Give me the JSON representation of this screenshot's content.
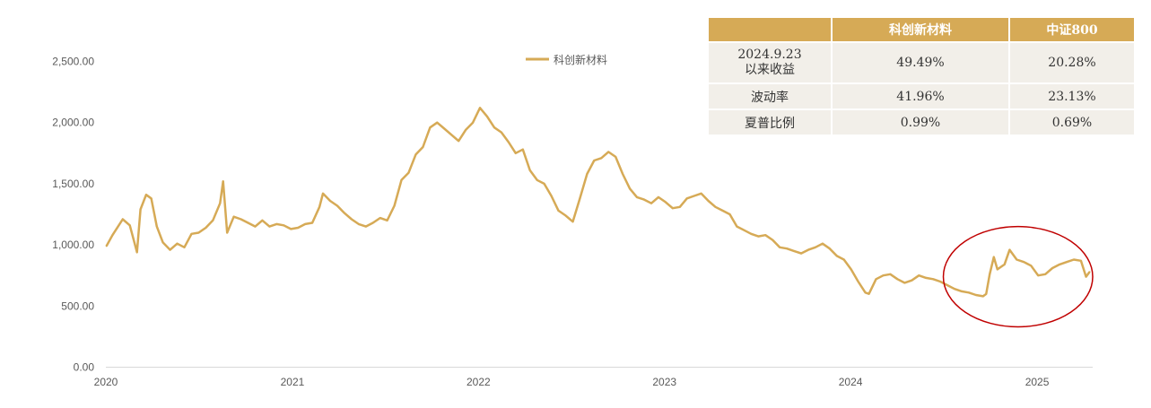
{
  "colors": {
    "line": "#d6aa56",
    "header_bg": "#d6aa56",
    "cell_bg": "#f2efe9",
    "highlight_circle": "#c00000",
    "axis": "#d9d9d9"
  },
  "chart_data": {
    "type": "line",
    "series": [
      {
        "name": "科创新材料",
        "points": [
          [
            "2020-01-02",
            990
          ],
          [
            "2020-01-14",
            1080
          ],
          [
            "2020-02-03",
            1210
          ],
          [
            "2020-02-17",
            1160
          ],
          [
            "2020-03-02",
            940
          ],
          [
            "2020-03-09",
            1290
          ],
          [
            "2020-03-20",
            1410
          ],
          [
            "2020-03-30",
            1380
          ],
          [
            "2020-04-10",
            1150
          ],
          [
            "2020-04-22",
            1020
          ],
          [
            "2020-05-06",
            960
          ],
          [
            "2020-05-20",
            1010
          ],
          [
            "2020-06-03",
            980
          ],
          [
            "2020-06-17",
            1090
          ],
          [
            "2020-07-01",
            1100
          ],
          [
            "2020-07-15",
            1140
          ],
          [
            "2020-07-29",
            1200
          ],
          [
            "2020-08-12",
            1340
          ],
          [
            "2020-08-18",
            1520
          ],
          [
            "2020-08-26",
            1100
          ],
          [
            "2020-09-08",
            1230
          ],
          [
            "2020-09-22",
            1210
          ],
          [
            "2020-10-06",
            1180
          ],
          [
            "2020-10-20",
            1150
          ],
          [
            "2020-11-03",
            1200
          ],
          [
            "2020-11-17",
            1150
          ],
          [
            "2020-12-01",
            1170
          ],
          [
            "2020-12-15",
            1160
          ],
          [
            "2020-12-29",
            1130
          ],
          [
            "2021-01-12",
            1140
          ],
          [
            "2021-01-26",
            1170
          ],
          [
            "2021-02-09",
            1180
          ],
          [
            "2021-02-23",
            1310
          ],
          [
            "2021-03-02",
            1420
          ],
          [
            "2021-03-16",
            1360
          ],
          [
            "2021-03-30",
            1320
          ],
          [
            "2021-04-13",
            1260
          ],
          [
            "2021-04-27",
            1210
          ],
          [
            "2021-05-11",
            1170
          ],
          [
            "2021-05-25",
            1150
          ],
          [
            "2021-06-08",
            1180
          ],
          [
            "2021-06-22",
            1220
          ],
          [
            "2021-07-06",
            1200
          ],
          [
            "2021-07-20",
            1320
          ],
          [
            "2021-08-03",
            1530
          ],
          [
            "2021-08-17",
            1590
          ],
          [
            "2021-08-31",
            1740
          ],
          [
            "2021-09-14",
            1800
          ],
          [
            "2021-09-28",
            1960
          ],
          [
            "2021-10-12",
            2000
          ],
          [
            "2021-10-26",
            1950
          ],
          [
            "2021-11-09",
            1900
          ],
          [
            "2021-11-23",
            1850
          ],
          [
            "2021-12-07",
            1940
          ],
          [
            "2021-12-21",
            2000
          ],
          [
            "2022-01-04",
            2120
          ],
          [
            "2022-01-18",
            2050
          ],
          [
            "2022-02-01",
            1960
          ],
          [
            "2022-02-15",
            1920
          ],
          [
            "2022-03-01",
            1840
          ],
          [
            "2022-03-15",
            1750
          ],
          [
            "2022-03-29",
            1780
          ],
          [
            "2022-04-12",
            1610
          ],
          [
            "2022-04-26",
            1530
          ],
          [
            "2022-05-10",
            1500
          ],
          [
            "2022-05-24",
            1400
          ],
          [
            "2022-06-07",
            1280
          ],
          [
            "2022-06-21",
            1240
          ],
          [
            "2022-07-05",
            1190
          ],
          [
            "2022-07-19",
            1380
          ],
          [
            "2022-08-02",
            1580
          ],
          [
            "2022-08-16",
            1690
          ],
          [
            "2022-08-30",
            1710
          ],
          [
            "2022-09-13",
            1760
          ],
          [
            "2022-09-27",
            1720
          ],
          [
            "2022-10-11",
            1580
          ],
          [
            "2022-10-25",
            1460
          ],
          [
            "2022-11-08",
            1390
          ],
          [
            "2022-11-22",
            1370
          ],
          [
            "2022-12-06",
            1340
          ],
          [
            "2022-12-20",
            1390
          ],
          [
            "2023-01-03",
            1350
          ],
          [
            "2023-01-17",
            1300
          ],
          [
            "2023-01-31",
            1310
          ],
          [
            "2023-02-14",
            1380
          ],
          [
            "2023-02-28",
            1400
          ],
          [
            "2023-03-14",
            1420
          ],
          [
            "2023-03-28",
            1360
          ],
          [
            "2023-04-11",
            1310
          ],
          [
            "2023-04-25",
            1280
          ],
          [
            "2023-05-09",
            1250
          ],
          [
            "2023-05-23",
            1150
          ],
          [
            "2023-06-06",
            1120
          ],
          [
            "2023-06-20",
            1090
          ],
          [
            "2023-07-04",
            1070
          ],
          [
            "2023-07-18",
            1080
          ],
          [
            "2023-08-01",
            1040
          ],
          [
            "2023-08-15",
            980
          ],
          [
            "2023-08-29",
            970
          ],
          [
            "2023-09-12",
            950
          ],
          [
            "2023-09-26",
            930
          ],
          [
            "2023-10-10",
            960
          ],
          [
            "2023-10-24",
            980
          ],
          [
            "2023-11-07",
            1010
          ],
          [
            "2023-11-21",
            970
          ],
          [
            "2023-12-05",
            910
          ],
          [
            "2023-12-19",
            880
          ],
          [
            "2024-01-02",
            800
          ],
          [
            "2024-01-16",
            700
          ],
          [
            "2024-01-30",
            610
          ],
          [
            "2024-02-06",
            600
          ],
          [
            "2024-02-20",
            720
          ],
          [
            "2024-03-05",
            750
          ],
          [
            "2024-03-19",
            760
          ],
          [
            "2024-04-02",
            720
          ],
          [
            "2024-04-16",
            690
          ],
          [
            "2024-04-30",
            710
          ],
          [
            "2024-05-14",
            750
          ],
          [
            "2024-05-28",
            730
          ],
          [
            "2024-06-11",
            720
          ],
          [
            "2024-06-25",
            700
          ],
          [
            "2024-07-09",
            670
          ],
          [
            "2024-07-23",
            640
          ],
          [
            "2024-08-06",
            620
          ],
          [
            "2024-08-20",
            610
          ],
          [
            "2024-09-03",
            590
          ],
          [
            "2024-09-17",
            580
          ],
          [
            "2024-09-23",
            600
          ],
          [
            "2024-09-30",
            760
          ],
          [
            "2024-10-08",
            900
          ],
          [
            "2024-10-15",
            800
          ],
          [
            "2024-10-29",
            840
          ],
          [
            "2024-11-08",
            960
          ],
          [
            "2024-11-22",
            880
          ],
          [
            "2024-12-06",
            860
          ],
          [
            "2024-12-20",
            830
          ],
          [
            "2025-01-03",
            750
          ],
          [
            "2025-01-17",
            760
          ],
          [
            "2025-01-31",
            810
          ],
          [
            "2025-02-14",
            840
          ],
          [
            "2025-02-28",
            860
          ],
          [
            "2025-03-14",
            880
          ],
          [
            "2025-03-28",
            870
          ],
          [
            "2025-04-07",
            740
          ],
          [
            "2025-04-14",
            780
          ]
        ]
      }
    ],
    "x_ticks": [
      "2020",
      "2021",
      "2022",
      "2023",
      "2024",
      "2025"
    ],
    "y_ticks": [
      "0.00",
      "500.00",
      "1,000.00",
      "1,500.00",
      "2,000.00",
      "2,500.00"
    ],
    "ylim": [
      0,
      2500
    ],
    "xlim": [
      "2020-01-01",
      "2025-04-20"
    ],
    "grid": false,
    "legend_position": "top-center",
    "annotation": {
      "shape": "ellipse",
      "color": "#c00000",
      "x_range": [
        "2024-07-01",
        "2025-04-20"
      ],
      "y_range": [
        330,
        1150
      ]
    }
  },
  "table": {
    "headers": [
      "",
      "科创新材料",
      "中证800"
    ],
    "rows": [
      {
        "label": "2024.9.23\n以来收益",
        "a": "49.49%",
        "b": "20.28%"
      },
      {
        "label": "波动率",
        "a": "41.96%",
        "b": "23.13%"
      },
      {
        "label": "夏普比例",
        "a": "0.99%",
        "b": "0.69%"
      }
    ]
  }
}
